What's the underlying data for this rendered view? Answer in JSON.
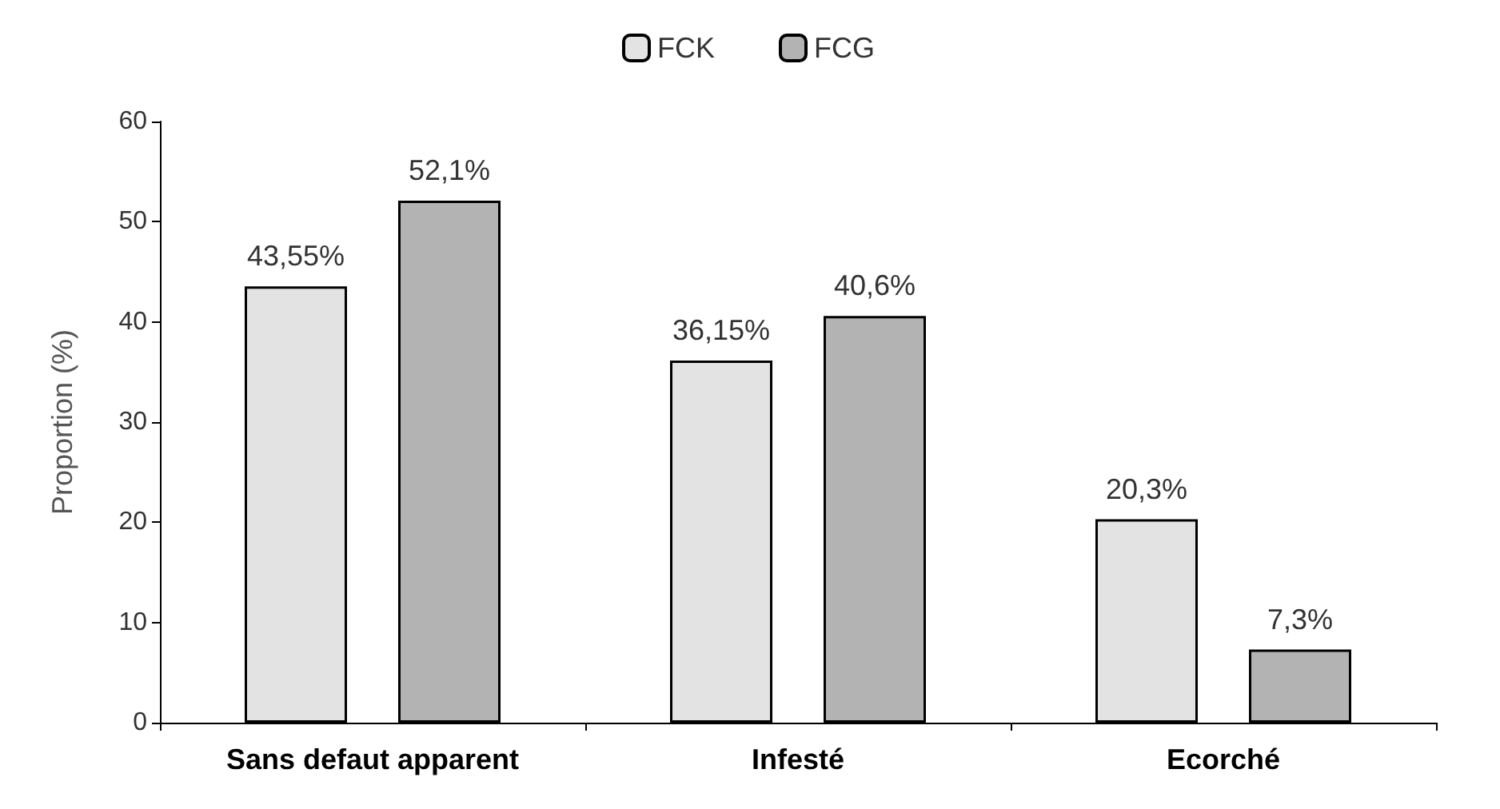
{
  "chart_data": {
    "type": "bar",
    "ylabel": "Proportion (%)",
    "categories": [
      "Sans defaut apparent",
      "Infesté",
      "Ecorché"
    ],
    "series": [
      {
        "name": "FCK",
        "color": "#e3e3e3",
        "values": [
          43.55,
          36.15,
          20.3
        ],
        "value_labels": [
          "43,55%",
          "36,15%",
          "20,3%"
        ]
      },
      {
        "name": "FCG",
        "color": "#b3b3b3",
        "values": [
          52.1,
          40.6,
          7.3
        ],
        "value_labels": [
          "52,1%",
          "40,6%",
          "7,3%"
        ]
      }
    ],
    "ylim": [
      0,
      60
    ],
    "yticks": [
      0,
      10,
      20,
      30,
      40,
      50,
      60
    ],
    "grid": false,
    "legend": "top"
  }
}
